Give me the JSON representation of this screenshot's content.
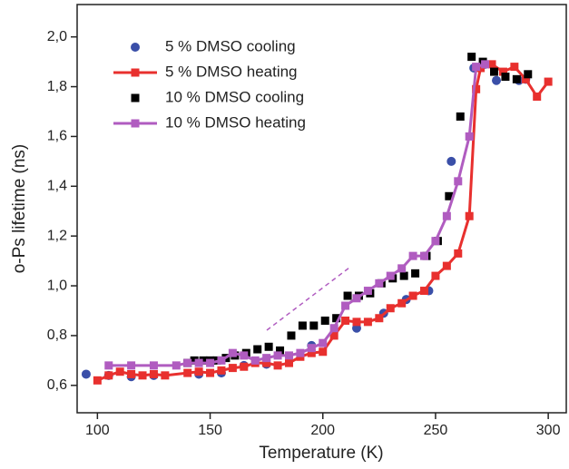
{
  "chart_data": {
    "type": "scatter",
    "x_label": "Temperature (K)",
    "y_label": "o-Ps lifetime (ns)",
    "xlim": [
      91,
      308
    ],
    "ylim": [
      0.49,
      2.13
    ],
    "xticks": [
      100,
      150,
      200,
      250,
      300
    ],
    "yticks": [
      {
        "value": 0.6,
        "label": "0,6"
      },
      {
        "value": 0.8,
        "label": "0,8"
      },
      {
        "value": 1.0,
        "label": "1,0"
      },
      {
        "value": 1.2,
        "label": "1,2"
      },
      {
        "value": 1.4,
        "label": "1,4"
      },
      {
        "value": 1.6,
        "label": "1,6"
      },
      {
        "value": 1.8,
        "label": "1,8"
      },
      {
        "value": 2.0,
        "label": "2,0"
      }
    ],
    "legend": "upper left",
    "series": [
      {
        "name": "5 % DMSO cooling",
        "color": "#3a4fa8",
        "marker": "circle",
        "line": false,
        "x": [
          95,
          105,
          115,
          125,
          145,
          155,
          165,
          175,
          195,
          215,
          227,
          237,
          247,
          257,
          267,
          272,
          277,
          287,
          290
        ],
        "values": [
          0.645,
          0.64,
          0.635,
          0.64,
          0.645,
          0.65,
          0.68,
          0.685,
          0.76,
          0.83,
          0.89,
          0.945,
          0.98,
          1.5,
          1.875,
          1.89,
          1.825,
          1.825,
          1.83
        ]
      },
      {
        "name": "5 % DMSO heating",
        "color": "#e8302e",
        "marker": "square",
        "line": true,
        "x": [
          100,
          105,
          110,
          115,
          120,
          125,
          130,
          140,
          145,
          150,
          155,
          160,
          165,
          170,
          175,
          180,
          185,
          190,
          195,
          200,
          205,
          210,
          215,
          220,
          225,
          230,
          235,
          240,
          245,
          250,
          255,
          260,
          265,
          268,
          270,
          275,
          280,
          285,
          290,
          295,
          300
        ],
        "values": [
          0.62,
          0.64,
          0.655,
          0.645,
          0.64,
          0.645,
          0.64,
          0.65,
          0.655,
          0.65,
          0.66,
          0.67,
          0.675,
          0.69,
          0.69,
          0.68,
          0.69,
          0.715,
          0.73,
          0.735,
          0.8,
          0.86,
          0.855,
          0.855,
          0.87,
          0.91,
          0.93,
          0.96,
          0.98,
          1.04,
          1.08,
          1.13,
          1.28,
          1.79,
          1.875,
          1.89,
          1.86,
          1.88,
          1.83,
          1.76,
          1.82
        ]
      },
      {
        "name": "10 % DMSO cooling",
        "color": "#000000",
        "marker": "square",
        "line": false,
        "x": [
          140,
          143,
          147,
          150,
          153,
          157,
          161,
          166,
          171,
          176,
          181,
          186,
          191,
          196,
          201,
          206,
          211,
          216,
          221,
          226,
          231,
          236,
          241,
          246,
          251,
          256,
          261,
          266,
          271,
          276,
          281,
          286,
          291
        ],
        "values": [
          0.69,
          0.7,
          0.7,
          0.7,
          0.7,
          0.71,
          0.72,
          0.73,
          0.745,
          0.755,
          0.74,
          0.8,
          0.84,
          0.84,
          0.86,
          0.87,
          0.96,
          0.96,
          0.97,
          1.01,
          1.03,
          1.04,
          1.05,
          1.12,
          1.18,
          1.36,
          1.68,
          1.92,
          1.9,
          1.86,
          1.84,
          1.83,
          1.85
        ]
      },
      {
        "name": "10 % DMSO heating",
        "color": "#b05cc0",
        "marker": "square",
        "line": true,
        "x": [
          105,
          115,
          125,
          135,
          140,
          145,
          150,
          155,
          160,
          165,
          170,
          175,
          180,
          185,
          190,
          195,
          200,
          205,
          210,
          215,
          220,
          225,
          230,
          235,
          240,
          245,
          250,
          255,
          260,
          265,
          268,
          272
        ],
        "values": [
          0.68,
          0.68,
          0.68,
          0.68,
          0.69,
          0.69,
          0.69,
          0.7,
          0.73,
          0.72,
          0.7,
          0.71,
          0.72,
          0.72,
          0.73,
          0.75,
          0.77,
          0.83,
          0.92,
          0.95,
          0.98,
          1.01,
          1.04,
          1.07,
          1.12,
          1.12,
          1.18,
          1.28,
          1.42,
          1.6,
          1.88,
          1.89
        ]
      }
    ]
  }
}
